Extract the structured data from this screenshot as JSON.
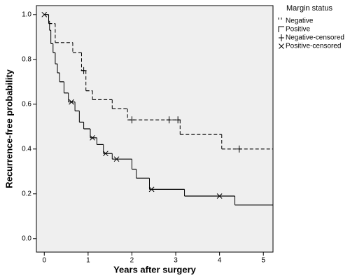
{
  "chart_data": {
    "type": "step",
    "x_label": "Years after surgery",
    "y_label": "Recurrence-free probability",
    "legend_title": "Margin status",
    "legend": "outside-right",
    "background": "#efefef",
    "xlim": [
      -0.18,
      5.22
    ],
    "xticks": [
      0,
      1,
      2,
      3,
      4,
      5
    ],
    "ylim": [
      -0.06,
      1.04
    ],
    "yticks": [
      {
        "value": 0,
        "label": "0.0"
      },
      0.2,
      0.4,
      0.6,
      0.8,
      {
        "value": 1,
        "label": "1.0"
      }
    ],
    "series": [
      {
        "name": "Negative",
        "color": "#000000",
        "dash": true,
        "x": [
          0,
          0.1,
          0.25,
          0.65,
          0.85,
          0.95,
          1.1,
          1.55,
          1.9,
          3.1,
          4.05
        ],
        "values": [
          1.0,
          0.96,
          0.875,
          0.83,
          0.75,
          0.66,
          0.62,
          0.58,
          0.53,
          0.465,
          0.4
        ]
      },
      {
        "name": "Positive",
        "color": "#000000",
        "dash": false,
        "x": [
          0,
          0.1,
          0.12,
          0.15,
          0.2,
          0.25,
          0.3,
          0.35,
          0.45,
          0.55,
          0.7,
          0.8,
          0.9,
          1.05,
          1.2,
          1.35,
          1.55,
          2.0,
          2.1,
          2.4,
          3.2,
          4.35
        ],
        "values": [
          1.0,
          0.97,
          0.93,
          0.87,
          0.83,
          0.78,
          0.74,
          0.7,
          0.65,
          0.61,
          0.57,
          0.52,
          0.49,
          0.45,
          0.42,
          0.38,
          0.355,
          0.31,
          0.27,
          0.22,
          0.19,
          0.15
        ]
      },
      {
        "name": "Negative-censored",
        "color": "#000000",
        "marker": "+",
        "x": [
          0.9,
          2.0,
          2.85,
          3.05,
          4.45
        ],
        "values": [
          0.75,
          0.53,
          0.53,
          0.53,
          0.4
        ]
      },
      {
        "name": "Positive-censored",
        "color": "#000000",
        "marker": "x",
        "x": [
          0,
          0.62,
          1.1,
          1.4,
          1.65,
          2.45,
          4.0
        ],
        "values": [
          1.0,
          0.61,
          0.45,
          0.38,
          0.355,
          0.22,
          0.19
        ]
      }
    ]
  }
}
